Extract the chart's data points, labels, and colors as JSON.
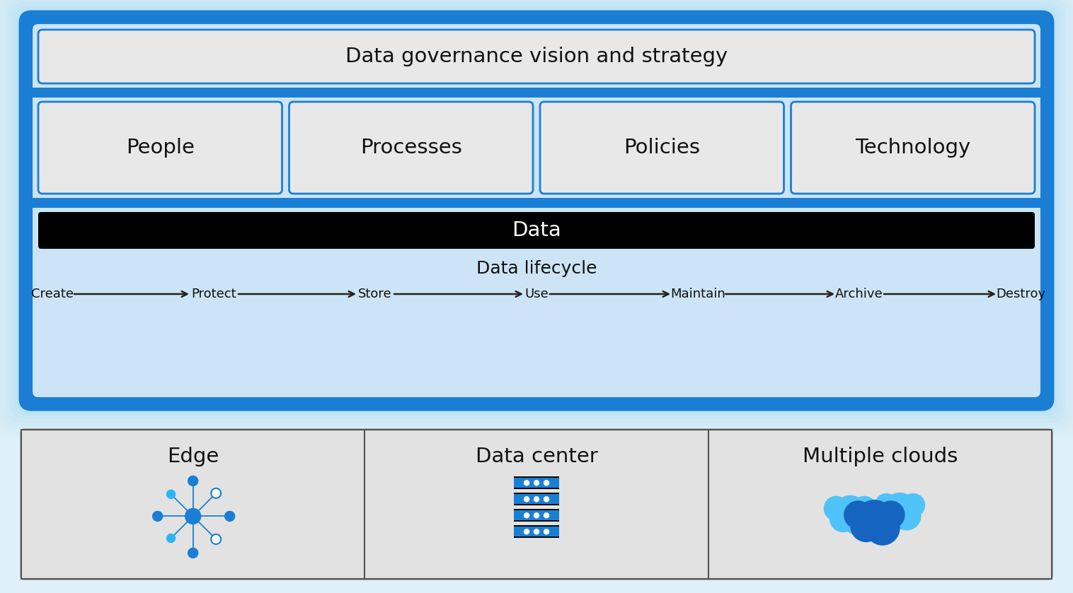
{
  "bg_color": "#dff0fa",
  "outer_border_color": "#1a7fd4",
  "inner_bg_color": "#cce4f5",
  "box_fill": "#e8e8e8",
  "title": "Data governance vision and strategy",
  "pillars": [
    "People",
    "Processes",
    "Policies",
    "Technology"
  ],
  "data_bar_color": "#000000",
  "data_bar_text": "Data",
  "data_bar_text_color": "#ffffff",
  "lifecycle_title": "Data lifecycle",
  "lifecycle_steps": [
    "Create",
    "Protect",
    "Store",
    "Use",
    "Maintain",
    "Archive",
    "Destroy"
  ],
  "bottom_items": [
    "Edge",
    "Data center",
    "Multiple clouds"
  ],
  "arrow_color": "#222222",
  "blue_dark": "#1565c0",
  "blue_mid": "#1a7fd4",
  "blue_light": "#4fc3f7",
  "blue_icon": "#1a7fd4",
  "blue_icon2": "#29b6f6"
}
